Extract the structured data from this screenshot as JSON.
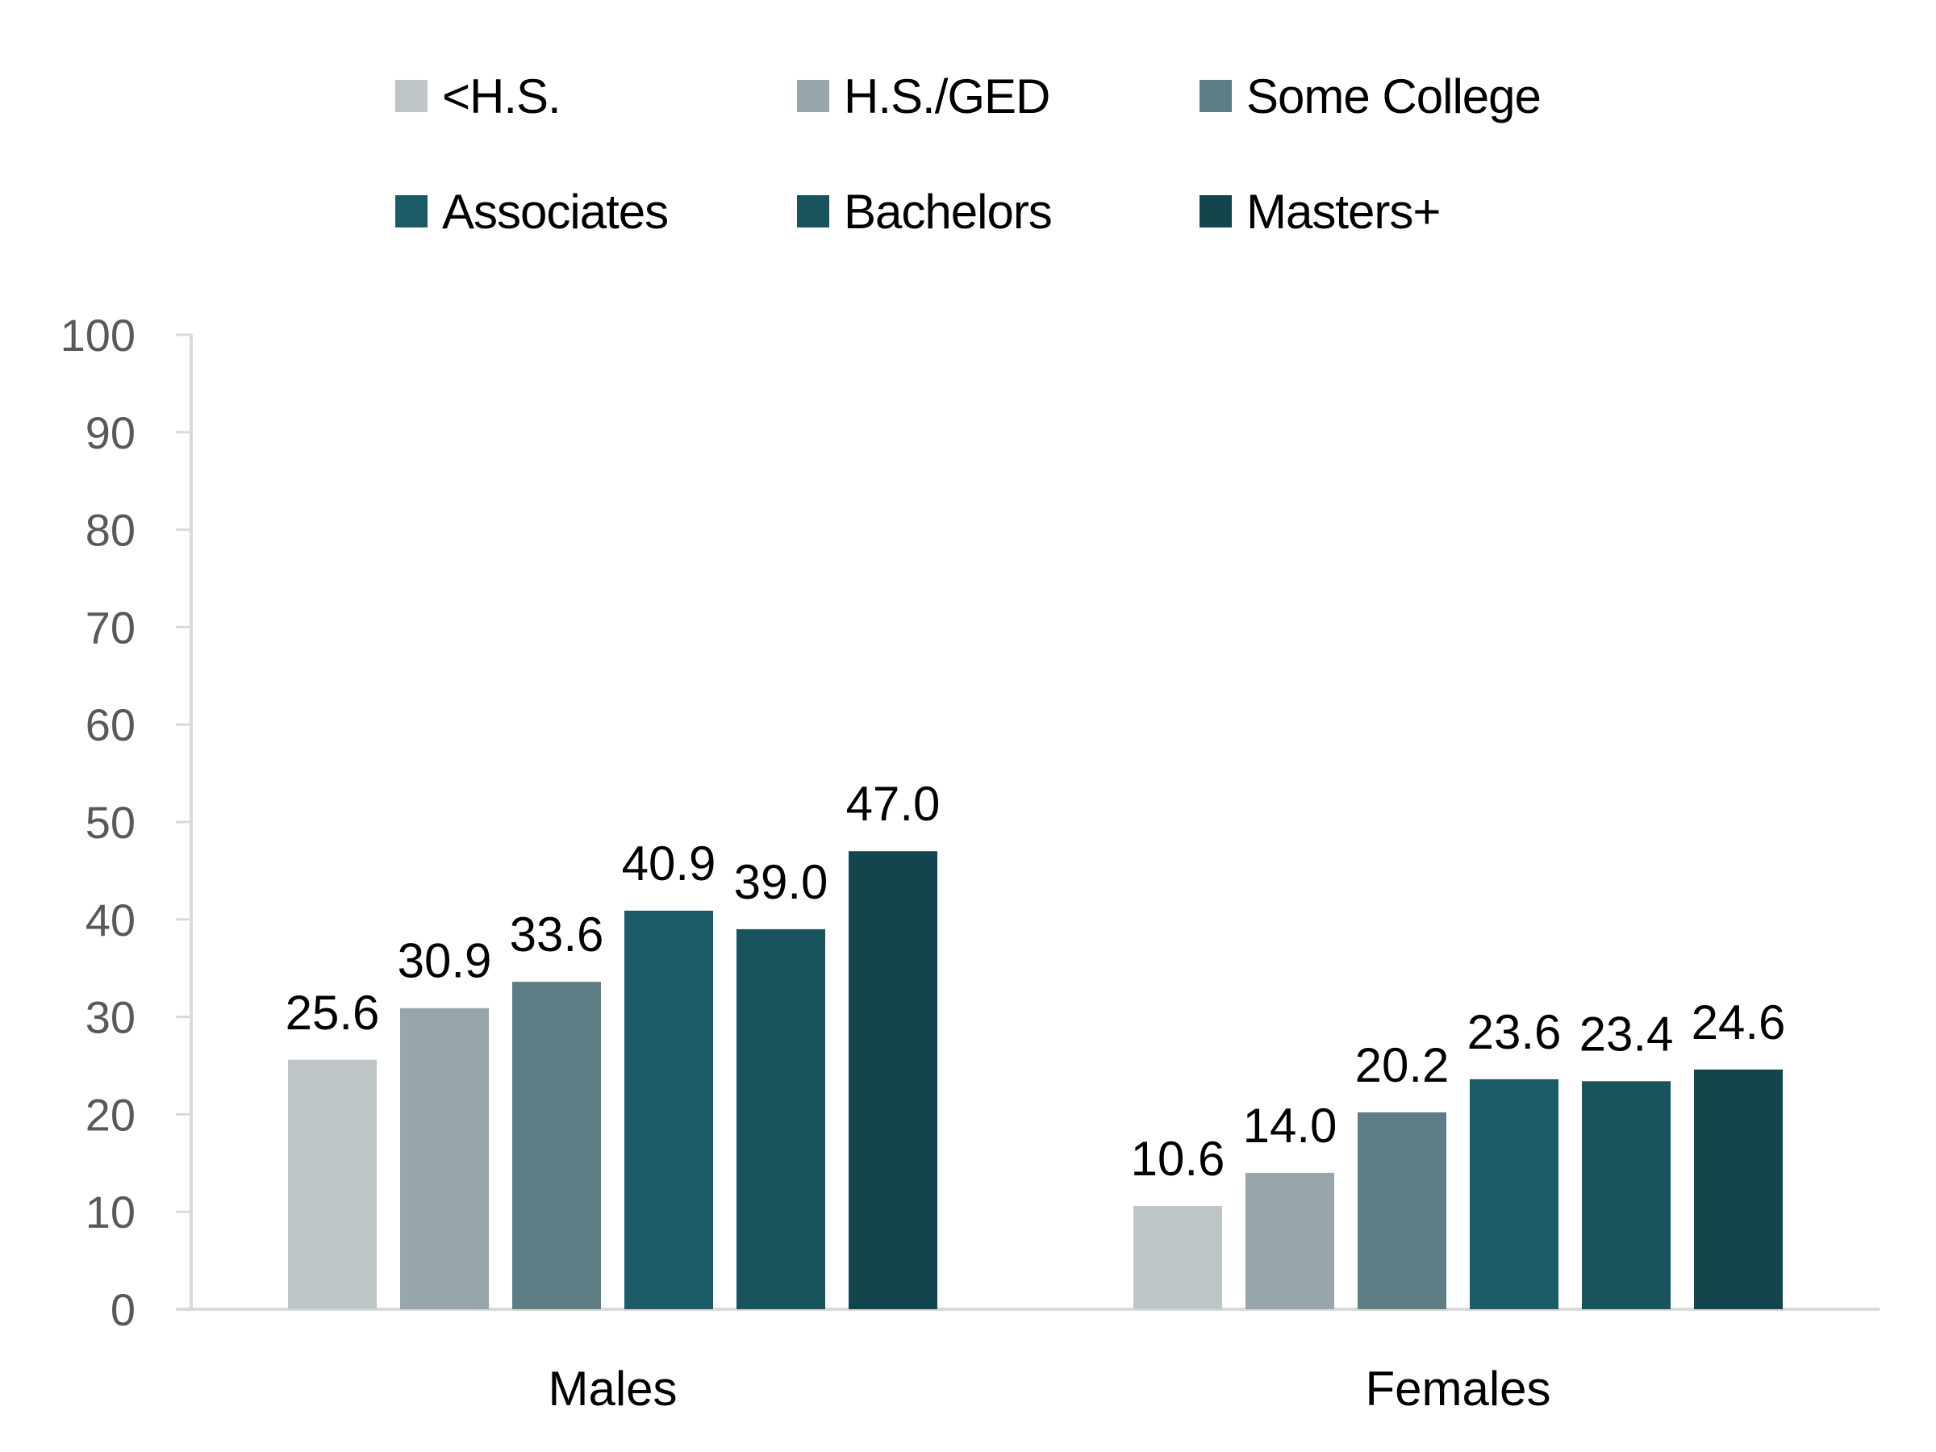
{
  "chart_data": {
    "type": "bar",
    "title": "",
    "xlabel": "",
    "ylabel": "",
    "ylim": [
      0,
      100
    ],
    "yticks": [
      0,
      10,
      20,
      30,
      40,
      50,
      60,
      70,
      80,
      90,
      100
    ],
    "grid": false,
    "legend_position": "top",
    "categories": [
      "Males",
      "Females"
    ],
    "series": [
      {
        "name": "<H.S.",
        "color": "#BDC5C7",
        "values": [
          25.6,
          10.6
        ],
        "labels": [
          "25.6",
          "10.6"
        ]
      },
      {
        "name": "H.S./GED",
        "color": "#97A6AA",
        "values": [
          30.9,
          14.0
        ],
        "labels": [
          "30.9",
          "14.0"
        ]
      },
      {
        "name": "Some College",
        "color": "#5E7D85",
        "values": [
          33.6,
          20.2
        ],
        "labels": [
          "33.6",
          "20.2"
        ]
      },
      {
        "name": "Associates",
        "color": "#1B5B66",
        "values": [
          40.9,
          23.6
        ],
        "labels": [
          "40.9",
          "23.6"
        ]
      },
      {
        "name": "Bachelors",
        "color": "#19535D",
        "values": [
          39.0,
          23.4
        ],
        "labels": [
          "39.0",
          "23.4"
        ]
      },
      {
        "name": "Masters+",
        "color": "#13454F",
        "values": [
          47.0,
          24.6
        ],
        "labels": [
          "47.0",
          "24.6"
        ]
      }
    ],
    "axis_color": "#D9D9D9"
  }
}
